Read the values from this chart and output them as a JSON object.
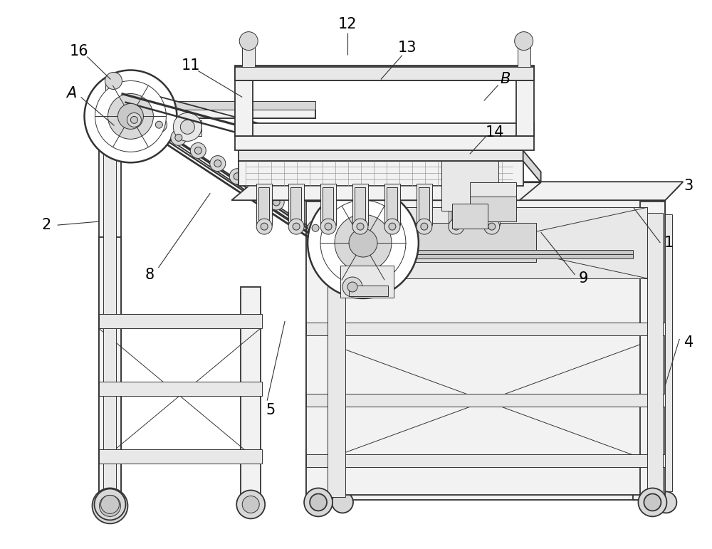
{
  "bg_color": "#ffffff",
  "lc": "#333333",
  "lc2": "#555555",
  "lw": 1.3,
  "tlw": 0.7,
  "flw": 0.5,
  "label_fs": 15,
  "figsize": [
    10.0,
    7.71
  ],
  "dpi": 100,
  "gray1": "#e8e8e8",
  "gray2": "#d8d8d8",
  "gray3": "#c8c8c8",
  "gray4": "#f2f2f2",
  "gray5": "#ebebeb"
}
